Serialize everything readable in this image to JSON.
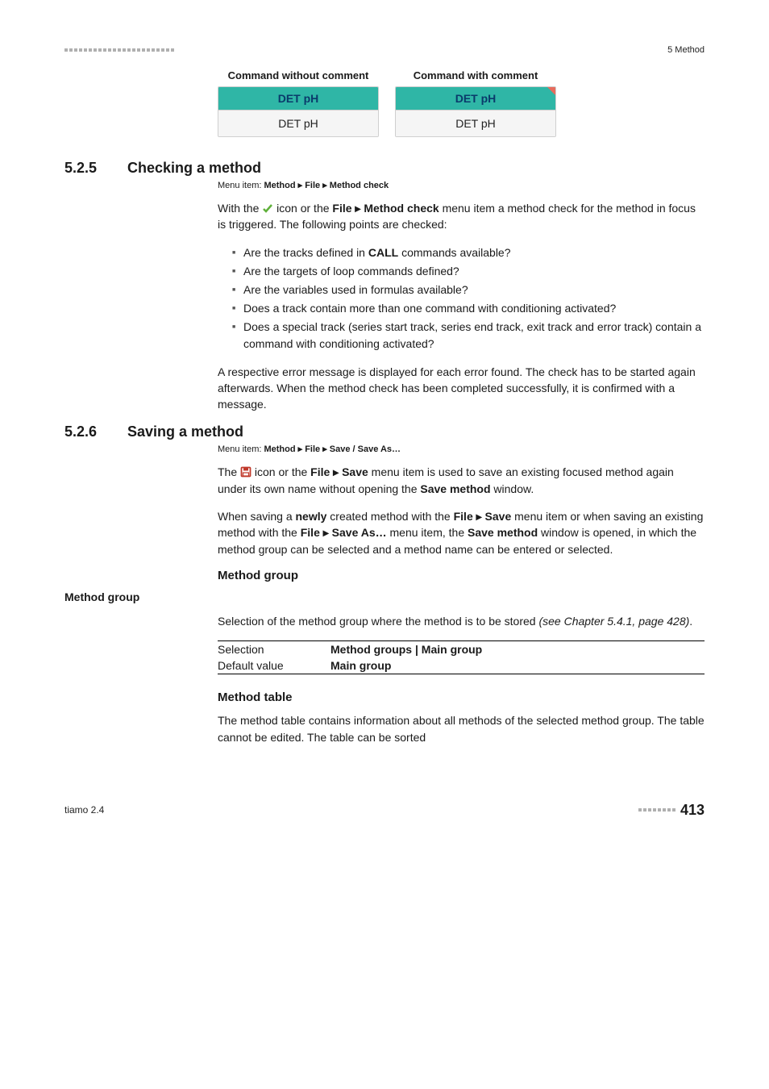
{
  "header": {
    "section_label": "5 Method",
    "dot_count": 23
  },
  "cmd_section": {
    "left_title": "Command without comment",
    "right_title": "Command with comment",
    "left_top": "DET pH",
    "left_bottom": "DET pH",
    "right_top": "DET pH",
    "right_bottom": "DET pH",
    "top_bg": "#2fb6a6",
    "top_fg": "#12499c",
    "bottom_bg": "#f5f5f5",
    "corner_color": "#e86b5c"
  },
  "sec525": {
    "num": "5.2.5",
    "title": "Checking a method",
    "breadcrumb_prefix": "Menu item: ",
    "breadcrumb": "Method ▸ File ▸ Method check",
    "intro_a": "With the ",
    "intro_b": " icon or the ",
    "intro_c": "File ▸ Method check",
    "intro_d": " menu item a method check for the method in focus is triggered. The following points are checked:",
    "bullets": [
      {
        "pre": "Are the tracks defined in ",
        "bold": "CALL",
        "post": " commands available?"
      },
      {
        "pre": "Are the targets of loop commands defined?",
        "bold": "",
        "post": ""
      },
      {
        "pre": "Are the variables used in formulas available?",
        "bold": "",
        "post": ""
      },
      {
        "pre": "Does a track contain more than one command with conditioning activated?",
        "bold": "",
        "post": ""
      },
      {
        "pre": "Does a special track (series start track, series end track, exit track and error track) contain a command with conditioning activated?",
        "bold": "",
        "post": ""
      }
    ],
    "outro": "A respective error message is displayed for each error found. The check has to be started again afterwards. When the method check has been completed successfully, it is confirmed with a message."
  },
  "sec526": {
    "num": "5.2.6",
    "title": "Saving a method",
    "breadcrumb_prefix": "Menu item: ",
    "breadcrumb": "Method ▸ File ▸ Save / Save As…",
    "p1_a": "The ",
    "p1_b": " icon or the ",
    "p1_c": "File ▸ Save",
    "p1_d": " menu item is used to save an existing focused method again under its own name without opening the ",
    "p1_e": "Save method",
    "p1_f": " window.",
    "p2_a": "When saving a ",
    "p2_b": "newly",
    "p2_c": " created method with the ",
    "p2_d": "File ▸ Save",
    "p2_e": " menu item or when saving an existing method with the ",
    "p2_f": "File ▸ Save As…",
    "p2_g": " menu item, the ",
    "p2_h": "Save method",
    "p2_i": " window is opened, in which the method group can be selected and a method name can be entered or selected.",
    "method_group_head": "Method group",
    "side_label": "Method group",
    "mg_para_a": "Selection of the method group where the method is to be stored ",
    "mg_para_b": "(see Chapter 5.4.1, page 428)",
    "mg_para_c": ".",
    "sel_label": "Selection",
    "sel_val": "Method groups | Main group",
    "def_label": "Default value",
    "def_val": "Main group",
    "method_table_head": "Method table",
    "mt_para": "The method table contains information about all methods of the selected method group. The table cannot be edited. The table can be sorted"
  },
  "footer": {
    "left": "tiamo 2.4",
    "page": "413",
    "dot_count": 8
  }
}
